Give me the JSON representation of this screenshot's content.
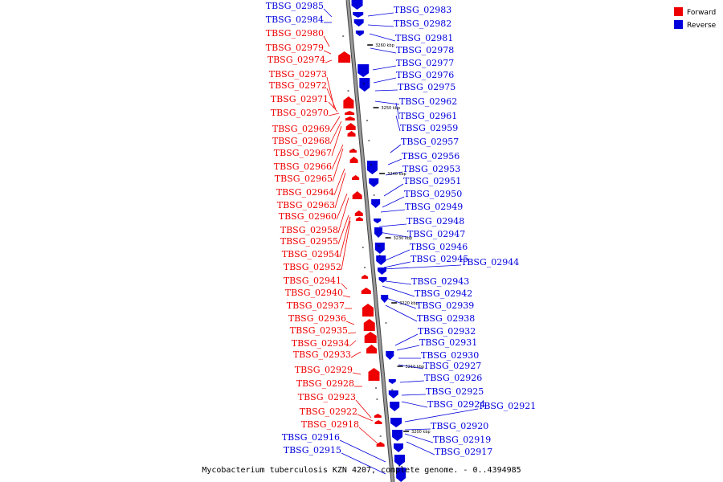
{
  "colors": {
    "forward": "#ee0000",
    "reverse": "#0000dd",
    "backbone": "#999999",
    "backbone_edge": "#444444"
  },
  "legend": {
    "forward": "Forward",
    "reverse": "Reverse"
  },
  "caption": "Mycobacterium tuberculosis KZN 4207, complete genome. - 0..4394985",
  "ticks": [
    "3260 kbp",
    "3250 kbp",
    "3240 kbp",
    "3230 kbp",
    "3220 kbp",
    "3210 kbp",
    "3200 kbp"
  ],
  "forward_labels": [
    "TBSG_02980",
    "TBSG_02979",
    "TBSG_02974",
    "TBSG_02973",
    "TBSG_02972",
    "TBSG_02971",
    "TBSG_02970",
    "TBSG_02969",
    "TBSG_02968",
    "TBSG_02967",
    "TBSG_02966",
    "TBSG_02965",
    "TBSG_02964",
    "TBSG_02963",
    "TBSG_02960",
    "TBSG_02958",
    "TBSG_02955",
    "TBSG_02954",
    "TBSG_02952",
    "TBSG_02941",
    "TBSG_02940",
    "TBSG_02937",
    "TBSG_02936",
    "TBSG_02935",
    "TBSG_02934",
    "TBSG_02933",
    "TBSG_02929",
    "TBSG_02928",
    "TBSG_02923",
    "TBSG_02922",
    "TBSG_02918"
  ],
  "reverse_labels_left": [
    "TBSG_02985",
    "TBSG_02984",
    "TBSG_02916",
    "TBSG_02915"
  ],
  "reverse_labels_right": [
    "TBSG_02983",
    "TBSG_02982",
    "TBSG_02981",
    "TBSG_02978",
    "TBSG_02977",
    "TBSG_02976",
    "TBSG_02975",
    "TBSG_02962",
    "TBSG_02961",
    "TBSG_02959",
    "TBSG_02957",
    "TBSG_02956",
    "TBSG_02953",
    "TBSG_02951",
    "TBSG_02950",
    "TBSG_02949",
    "TBSG_02948",
    "TBSG_02947",
    "TBSG_02946",
    "TBSG_02945",
    "TBSG_02944",
    "TBSG_02943",
    "TBSG_02942",
    "TBSG_02939",
    "TBSG_02938",
    "TBSG_02932",
    "TBSG_02931",
    "TBSG_02930",
    "TBSG_02927",
    "TBSG_02926",
    "TBSG_02925",
    "TBSG_02924",
    "TBSG_02921",
    "TBSG_02920",
    "TBSG_02919",
    "TBSG_02917"
  ]
}
